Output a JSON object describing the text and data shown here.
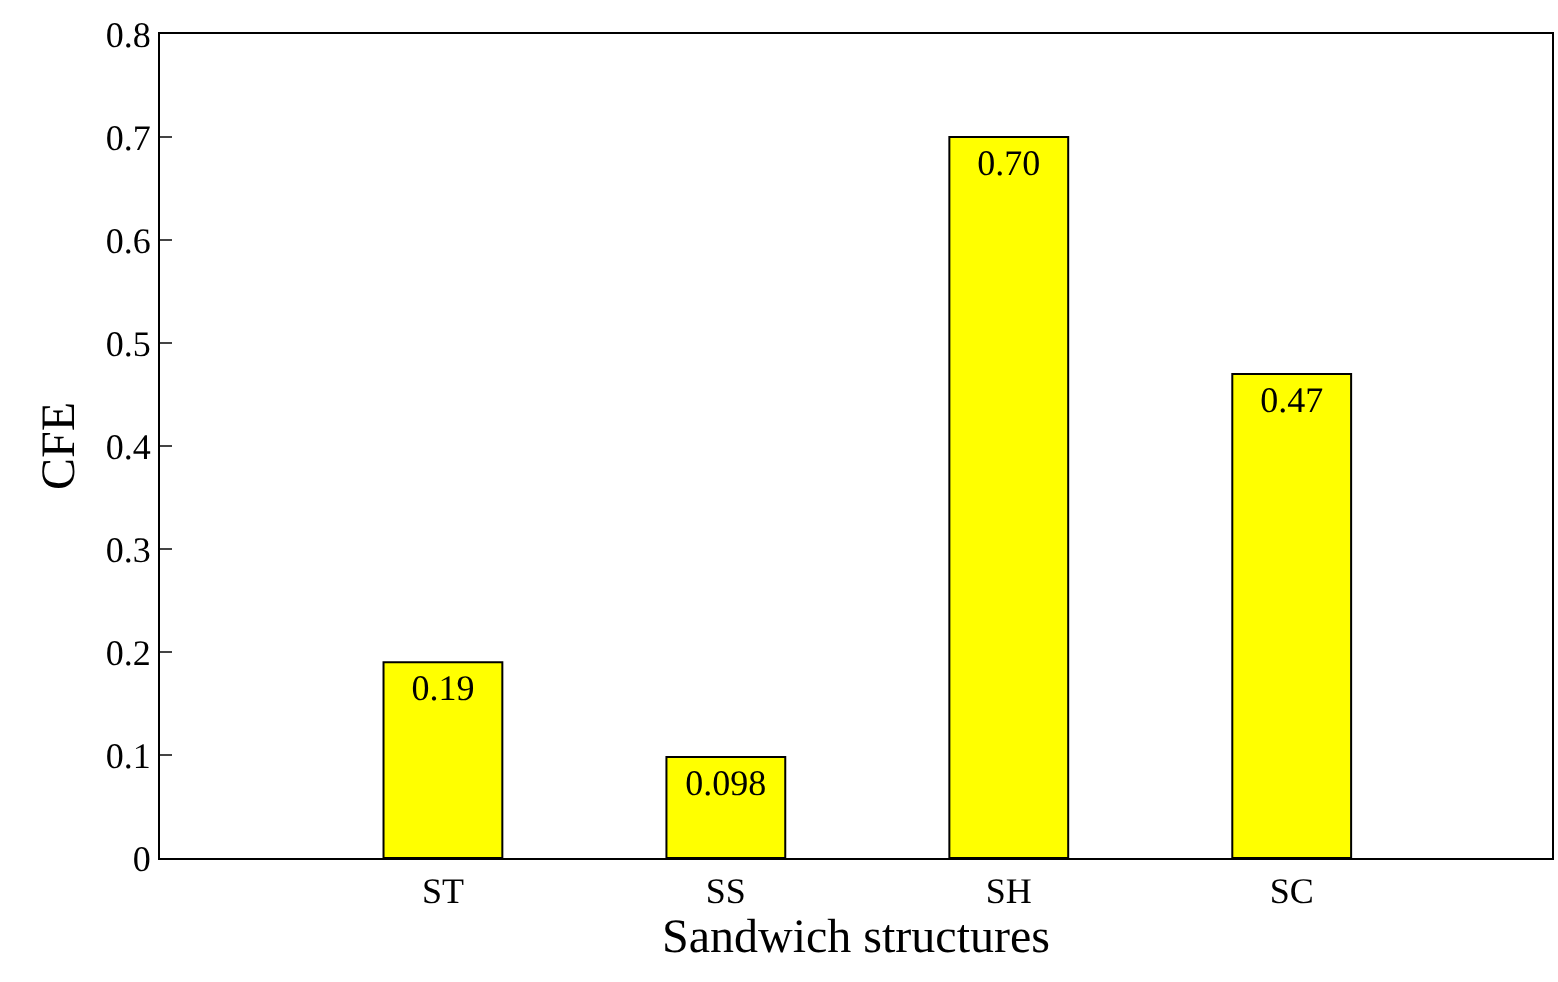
{
  "chart_data": {
    "type": "bar",
    "xlabel": "Sandwich structures",
    "ylabel": "CFE",
    "categories": [
      "ST",
      "SS",
      "SH",
      "SC"
    ],
    "values": [
      0.19,
      0.098,
      0.7,
      0.47
    ],
    "value_labels": [
      "0.19",
      "0.098",
      "0.70",
      "0.47"
    ],
    "color": "#ffff00",
    "ylim": [
      0,
      0.8
    ],
    "yticks": [
      0,
      0.1,
      0.2,
      0.3,
      0.4,
      0.5,
      0.6,
      0.7,
      0.8
    ],
    "tick_labels": [
      "x",
      "y"
    ]
  }
}
